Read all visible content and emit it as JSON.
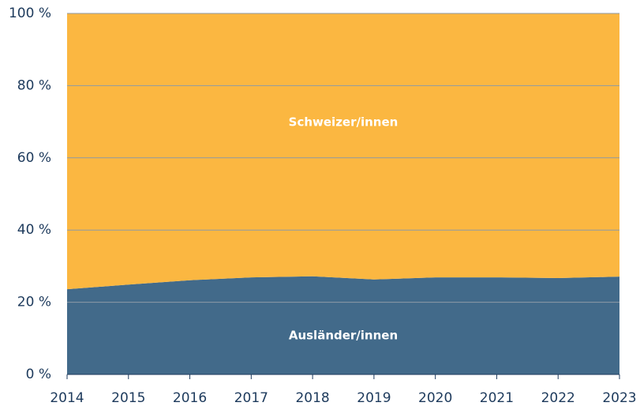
{
  "chart_data": {
    "type": "stacked_area",
    "x": [
      2014,
      2015,
      2016,
      2017,
      2018,
      2019,
      2020,
      2021,
      2022,
      2023
    ],
    "series": [
      {
        "name": "Ausländer/innen",
        "color": "#426a8a",
        "values": [
          23.6,
          24.9,
          26.1,
          26.9,
          27.2,
          26.3,
          26.9,
          26.9,
          26.7,
          27.1
        ]
      },
      {
        "name": "Schweizer/innen",
        "color": "#fbb741",
        "values": [
          76.4,
          75.1,
          73.9,
          73.1,
          72.8,
          73.7,
          73.1,
          73.1,
          73.3,
          72.9
        ]
      }
    ],
    "xlim": [
      2014,
      2023
    ],
    "xticks": [
      2014,
      2015,
      2016,
      2017,
      2018,
      2019,
      2020,
      2021,
      2022,
      2023
    ],
    "ylim": [
      0,
      100
    ],
    "yticks": [
      {
        "value": 0,
        "label": "0 %"
      },
      {
        "value": 20,
        "label": "20 %"
      },
      {
        "value": 40,
        "label": "40 %"
      },
      {
        "value": 60,
        "label": "60 %"
      },
      {
        "value": 80,
        "label": "80 %"
      },
      {
        "value": 100,
        "label": "100 %"
      }
    ],
    "grid": true
  }
}
